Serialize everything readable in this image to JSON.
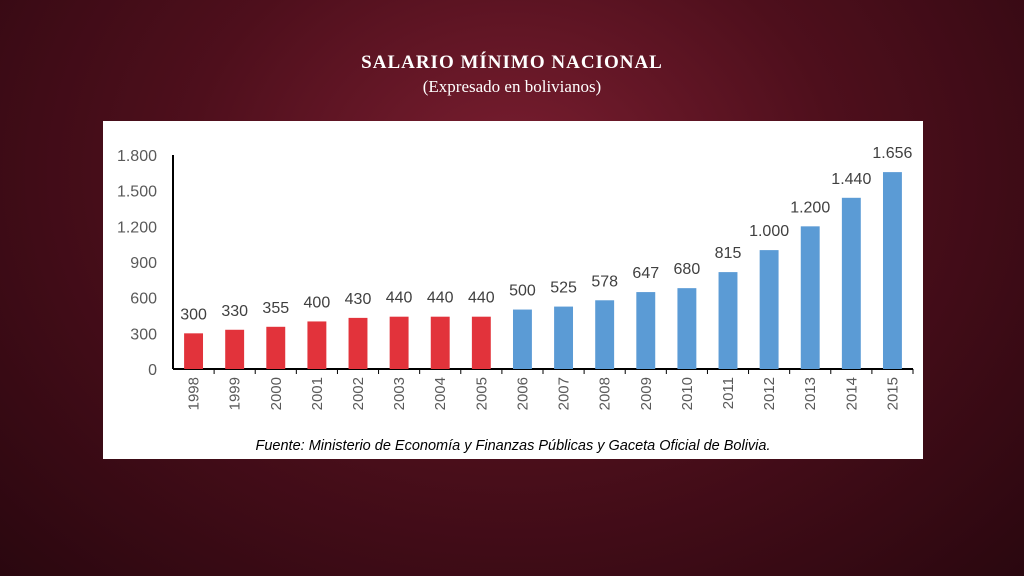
{
  "slide": {
    "title": "SALARIO MÍNIMO NACIONAL",
    "subtitle": "(Expresado en bolivianos)"
  },
  "chart_data": {
    "type": "bar",
    "categories": [
      "1998",
      "1999",
      "2000",
      "2001",
      "2002",
      "2003",
      "2004",
      "2005",
      "2006",
      "2007",
      "2008",
      "2009",
      "2010",
      "2011",
      "2012",
      "2013",
      "2014",
      "2015"
    ],
    "values": [
      300,
      330,
      355,
      400,
      430,
      440,
      440,
      440,
      500,
      525,
      578,
      647,
      680,
      815,
      1000,
      1200,
      1440,
      1656
    ],
    "data_labels": [
      "300",
      "330",
      "355",
      "400",
      "430",
      "440",
      "440",
      "440",
      "500",
      "525",
      "578",
      "647",
      "680",
      "815",
      "1.000",
      "1.200",
      "1.440",
      "1.656"
    ],
    "bar_colors": [
      "#e2333b",
      "#e2333b",
      "#e2333b",
      "#e2333b",
      "#e2333b",
      "#e2333b",
      "#e2333b",
      "#e2333b",
      "#5b9bd5",
      "#5b9bd5",
      "#5b9bd5",
      "#5b9bd5",
      "#5b9bd5",
      "#5b9bd5",
      "#5b9bd5",
      "#5b9bd5",
      "#5b9bd5",
      "#5b9bd5"
    ],
    "ylim": [
      0,
      1800
    ],
    "yticks": [
      0,
      300,
      600,
      900,
      1200,
      1500,
      1800
    ],
    "ytick_labels": [
      "0",
      "300",
      "600",
      "900",
      "1.200",
      "1.500",
      "1.800"
    ],
    "grid": false,
    "source": "Fuente: Ministerio de Economía y Finanzas Públicas y Gaceta Oficial de Bolivia."
  }
}
